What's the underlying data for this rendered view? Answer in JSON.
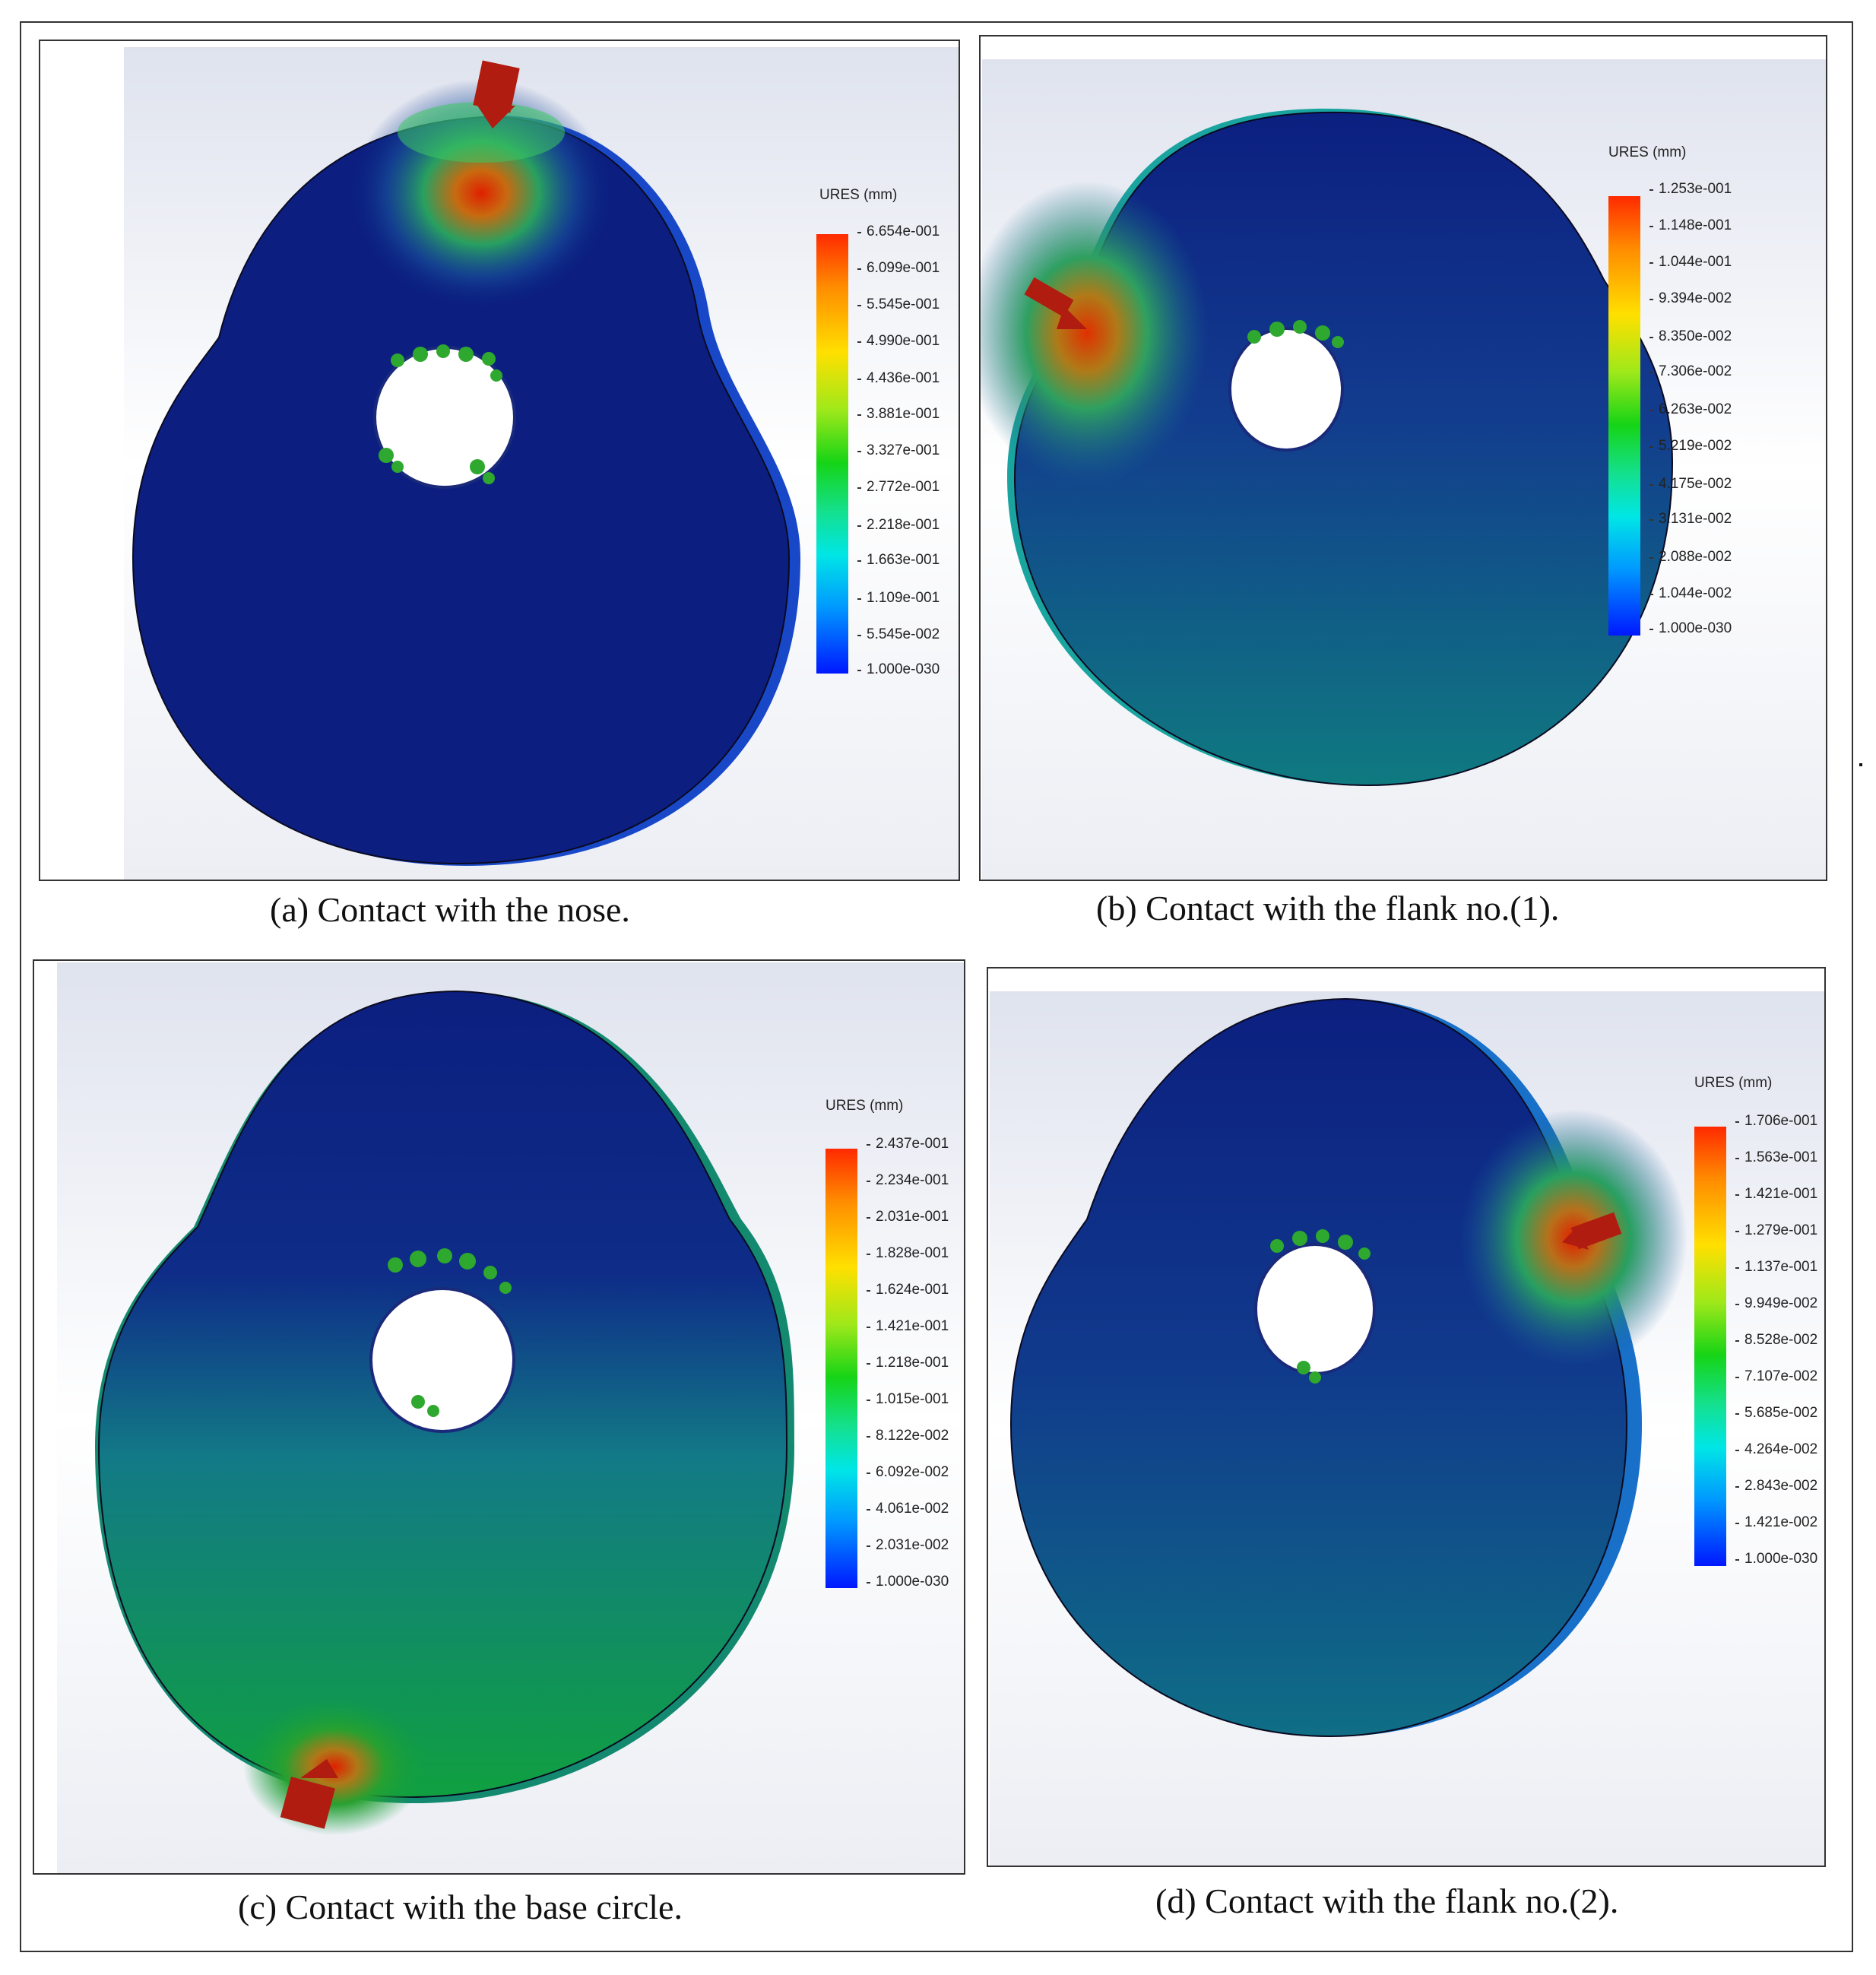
{
  "legend_title": "URES (mm)",
  "panels": [
    {
      "caption": "(a) Contact with the nose.",
      "ticks": [
        "6.654e-001",
        "6.099e-001",
        "5.545e-001",
        "4.990e-001",
        "4.436e-001",
        "3.881e-001",
        "3.327e-001",
        "2.772e-001",
        "2.218e-001",
        "1.663e-001",
        "1.109e-001",
        "5.545e-002",
        "1.000e-030"
      ]
    },
    {
      "caption": "(b) Contact with the flank no.(1).",
      "ticks": [
        "1.253e-001",
        "1.148e-001",
        "1.044e-001",
        "9.394e-002",
        "8.350e-002",
        "7.306e-002",
        "6.263e-002",
        "5.219e-002",
        "4.175e-002",
        "3.131e-002",
        "2.088e-002",
        "1.044e-002",
        "1.000e-030"
      ]
    },
    {
      "caption": "(c) Contact with the base circle.",
      "ticks": [
        "2.437e-001",
        "2.234e-001",
        "2.031e-001",
        "1.828e-001",
        "1.624e-001",
        "1.421e-001",
        "1.218e-001",
        "1.015e-001",
        "8.122e-002",
        "6.092e-002",
        "4.061e-002",
        "2.031e-002",
        "1.000e-030"
      ]
    },
    {
      "caption": "(d) Contact with the flank no.(2).",
      "ticks": [
        "1.706e-001",
        "1.563e-001",
        "1.421e-001",
        "1.279e-001",
        "1.137e-001",
        "9.949e-002",
        "8.528e-002",
        "7.107e-002",
        "5.685e-002",
        "4.264e-002",
        "2.843e-002",
        "1.421e-002",
        "1.000e-030"
      ]
    }
  ]
}
